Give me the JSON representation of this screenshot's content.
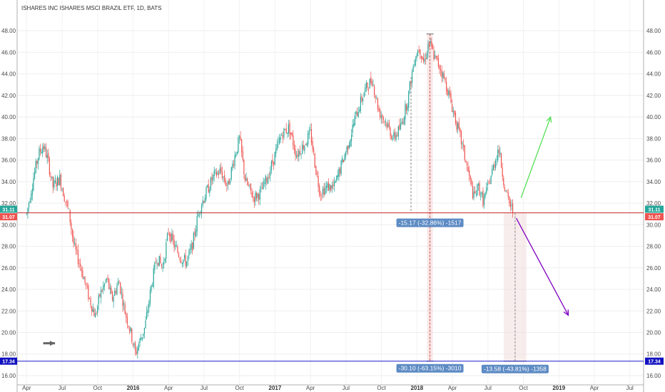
{
  "chart_data": {
    "type": "candlestick",
    "title": "ISHARES INC ISHARES MSCI BRAZIL ETF, 1D, BATS",
    "y_ticks": [
      "16.00",
      "18.00",
      "20.00",
      "22.00",
      "24.00",
      "26.00",
      "28.00",
      "30.00",
      "32.00",
      "34.00",
      "36.00",
      "38.00",
      "40.00",
      "42.00",
      "44.00",
      "46.00",
      "48.00"
    ],
    "y_range": [
      15.8,
      49.2
    ],
    "x_ticks": [
      {
        "label": "Apr",
        "t": 0.0
      },
      {
        "label": "Jul",
        "t": 3.0
      },
      {
        "label": "Oct",
        "t": 6.0
      },
      {
        "label": "2016",
        "t": 9.0,
        "year": true
      },
      {
        "label": "Apr",
        "t": 12.0
      },
      {
        "label": "Jul",
        "t": 15.0
      },
      {
        "label": "Oct",
        "t": 18.0
      },
      {
        "label": "2017",
        "t": 21.0,
        "year": true
      },
      {
        "label": "Apr",
        "t": 24.0
      },
      {
        "label": "Jul",
        "t": 27.0
      },
      {
        "label": "Oct",
        "t": 30.0
      },
      {
        "label": "2018",
        "t": 33.0,
        "year": true
      },
      {
        "label": "Apr",
        "t": 36.0
      },
      {
        "label": "Jul",
        "t": 39.0
      },
      {
        "label": "Oct",
        "t": 42.0
      },
      {
        "label": "2019",
        "t": 45.0,
        "year": true
      },
      {
        "label": "Apr",
        "t": 48.0
      },
      {
        "label": "Jul",
        "t": 51.0
      }
    ],
    "x_range": [
      -0.2,
      51.5
    ],
    "price_path": [
      [
        0.0,
        31.0
      ],
      [
        0.6,
        34.5
      ],
      [
        1.0,
        36.5
      ],
      [
        1.4,
        37.4
      ],
      [
        1.8,
        36.0
      ],
      [
        2.2,
        33.5
      ],
      [
        2.8,
        34.3
      ],
      [
        3.2,
        32.6
      ],
      [
        3.6,
        31.0
      ],
      [
        4.0,
        28.0
      ],
      [
        4.6,
        26.0
      ],
      [
        5.2,
        23.5
      ],
      [
        5.8,
        21.5
      ],
      [
        6.2,
        23.5
      ],
      [
        6.8,
        25.0
      ],
      [
        7.2,
        23.0
      ],
      [
        7.8,
        24.8
      ],
      [
        8.3,
        22.0
      ],
      [
        8.8,
        20.0
      ],
      [
        9.2,
        18.0
      ],
      [
        9.5,
        19.0
      ],
      [
        10.0,
        20.5
      ],
      [
        10.5,
        24.0
      ],
      [
        11.0,
        27.0
      ],
      [
        11.5,
        26.0
      ],
      [
        12.0,
        29.5
      ],
      [
        12.5,
        28.0
      ],
      [
        13.0,
        27.0
      ],
      [
        13.5,
        26.5
      ],
      [
        14.0,
        28.0
      ],
      [
        14.6,
        31.5
      ],
      [
        15.2,
        33.0
      ],
      [
        15.8,
        34.5
      ],
      [
        16.4,
        35.0
      ],
      [
        17.0,
        33.5
      ],
      [
        17.5,
        36.0
      ],
      [
        18.0,
        38.0
      ],
      [
        18.5,
        34.0
      ],
      [
        19.2,
        32.5
      ],
      [
        19.8,
        33.0
      ],
      [
        20.4,
        34.5
      ],
      [
        21.0,
        36.5
      ],
      [
        21.6,
        38.5
      ],
      [
        22.2,
        39.0
      ],
      [
        22.8,
        36.5
      ],
      [
        23.5,
        37.5
      ],
      [
        24.0,
        38.5
      ],
      [
        24.4,
        35.5
      ],
      [
        24.8,
        33.0
      ],
      [
        25.4,
        33.5
      ],
      [
        26.0,
        33.5
      ],
      [
        26.6,
        35.5
      ],
      [
        27.2,
        37.5
      ],
      [
        27.8,
        40.0
      ],
      [
        28.6,
        42.5
      ],
      [
        29.2,
        43.5
      ],
      [
        29.8,
        40.5
      ],
      [
        30.4,
        39.5
      ],
      [
        31.0,
        38.0
      ],
      [
        31.6,
        39.0
      ],
      [
        32.2,
        41.5
      ],
      [
        32.8,
        45.5
      ],
      [
        33.2,
        46.5
      ],
      [
        33.6,
        45.0
      ],
      [
        34.0,
        47.0
      ],
      [
        34.5,
        45.5
      ],
      [
        35.0,
        44.5
      ],
      [
        35.6,
        42.5
      ],
      [
        36.2,
        40.0
      ],
      [
        36.8,
        37.5
      ],
      [
        37.4,
        34.5
      ],
      [
        37.8,
        32.5
      ],
      [
        38.2,
        33.5
      ],
      [
        38.6,
        32.2
      ],
      [
        39.0,
        33.5
      ],
      [
        39.5,
        35.5
      ],
      [
        39.9,
        37.2
      ],
      [
        40.2,
        35.0
      ],
      [
        40.5,
        33.0
      ],
      [
        40.8,
        32.0
      ],
      [
        41.1,
        31.3
      ]
    ],
    "horizontal_lines": [
      {
        "price": 31.1,
        "color": "#c62828"
      },
      {
        "price": 17.34,
        "color": "#1a1acc"
      }
    ],
    "price_badges": [
      {
        "price": 31.11,
        "label": "31.11",
        "color": "#26a69a",
        "row": "above"
      },
      {
        "price": 31.07,
        "label": "31.07",
        "color": "#ef5350",
        "row": "below"
      },
      {
        "price": 17.34,
        "label": "17.34",
        "color": "#1010c0",
        "row": "center"
      }
    ],
    "measures": [
      {
        "label": "-15.17 (-32.86%) -1517",
        "x_center": 34.1
      },
      {
        "label": "-30.10 (-63.15%) -3010",
        "x_center": 34.1
      },
      {
        "label": "-13.58 (-43.81%) -1358",
        "x_center": 41.3
      }
    ],
    "arrows": [
      {
        "color": "#55e055",
        "from": [
          41.8,
          32.5
        ],
        "to": [
          44.3,
          40.0
        ]
      },
      {
        "color": "#8000c0",
        "from": [
          41.4,
          30.6
        ],
        "to": [
          45.8,
          21.6
        ]
      },
      {
        "color": "#666666",
        "from": [
          1.4,
          19.0
        ],
        "to": [
          2.4,
          19.0
        ]
      }
    ]
  }
}
